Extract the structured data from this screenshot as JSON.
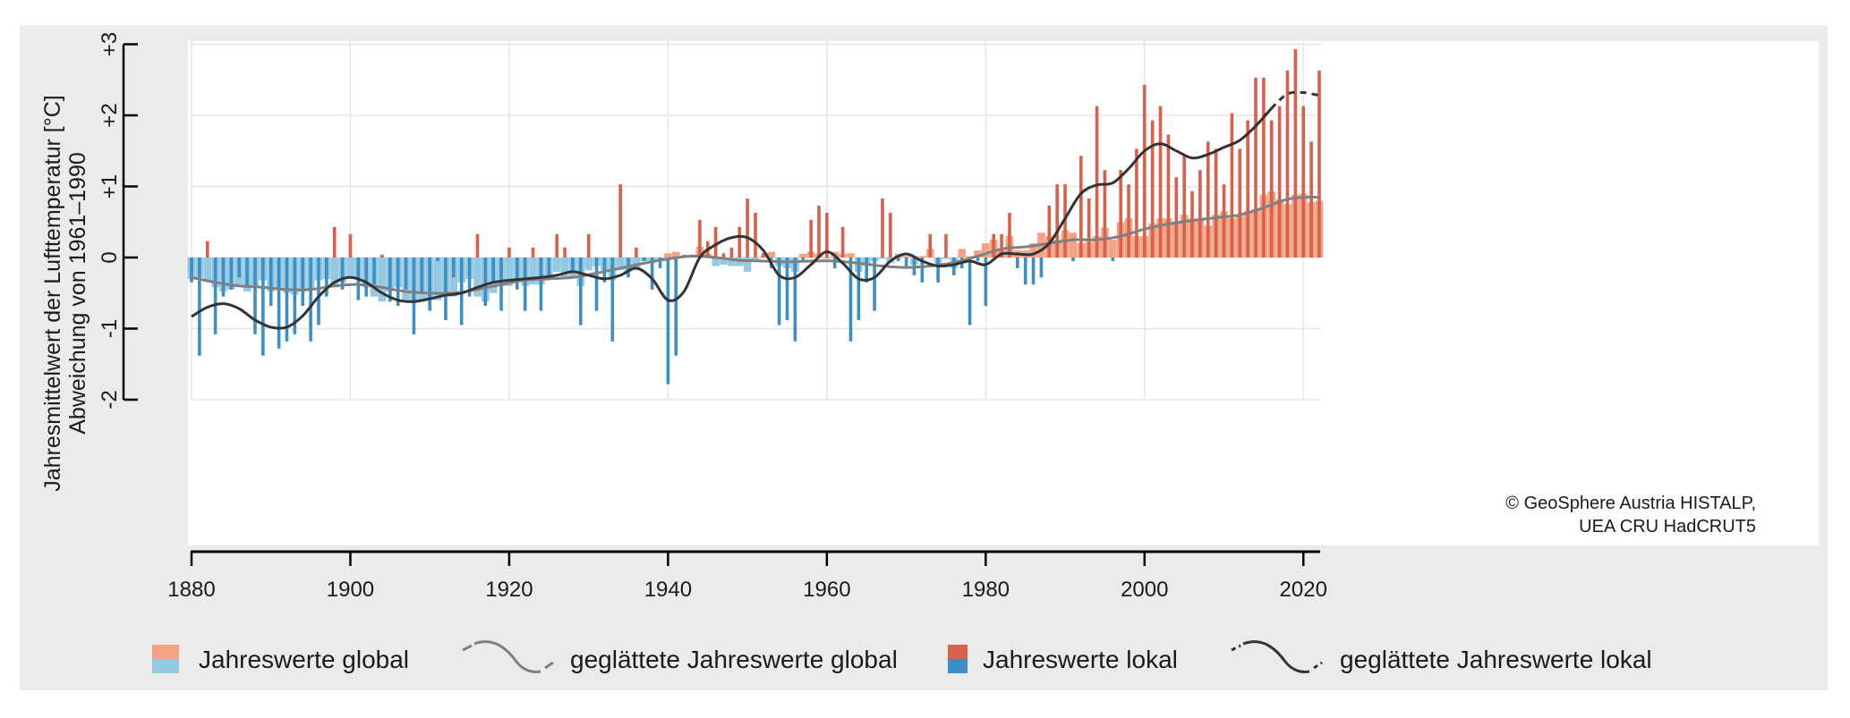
{
  "chart_data": {
    "type": "bar",
    "ylabel_line1": "Jahresmittelwert der Lufttemperatur [°C]",
    "ylabel_line2": "Abweichung von 1961–1990",
    "xlim": [
      1880,
      2022
    ],
    "ylim": [
      -2,
      3
    ],
    "x_ticks": [
      1880,
      1900,
      1920,
      1940,
      1960,
      1980,
      2000,
      2020
    ],
    "y_ticks": [
      -2,
      -1,
      0,
      1,
      2,
      3
    ],
    "y_tick_labels": [
      "-2",
      "-1",
      "0",
      "+1",
      "+2",
      "+3"
    ],
    "grid": true,
    "legend_position": "bottom",
    "credit": [
      "© GeoSphere Austria HISTALP,",
      "UEA CRU HadCRUT5"
    ],
    "colors": {
      "local_positive": "#d9604b",
      "local_negative": "#3b8fc4",
      "global_positive": "#f2a384",
      "global_negative": "#95c8e1",
      "smoothed_global": "#808080",
      "smoothed_local": "#333333"
    },
    "series": [
      {
        "name": "Jahreswerte lokal",
        "x": [
          1880,
          1881,
          1882,
          1883,
          1884,
          1885,
          1886,
          1887,
          1888,
          1889,
          1890,
          1891,
          1892,
          1893,
          1894,
          1895,
          1896,
          1897,
          1898,
          1899,
          1900,
          1901,
          1902,
          1903,
          1904,
          1905,
          1906,
          1907,
          1908,
          1909,
          1910,
          1911,
          1912,
          1913,
          1914,
          1915,
          1916,
          1917,
          1918,
          1919,
          1920,
          1921,
          1922,
          1923,
          1924,
          1925,
          1926,
          1927,
          1928,
          1929,
          1930,
          1931,
          1932,
          1933,
          1934,
          1935,
          1936,
          1937,
          1938,
          1939,
          1940,
          1941,
          1942,
          1943,
          1944,
          1945,
          1946,
          1947,
          1948,
          1949,
          1950,
          1951,
          1952,
          1953,
          1954,
          1955,
          1956,
          1957,
          1958,
          1959,
          1960,
          1961,
          1962,
          1963,
          1964,
          1965,
          1966,
          1967,
          1968,
          1969,
          1970,
          1971,
          1972,
          1973,
          1974,
          1975,
          1976,
          1977,
          1978,
          1979,
          1980,
          1981,
          1982,
          1983,
          1984,
          1985,
          1986,
          1987,
          1988,
          1989,
          1990,
          1991,
          1992,
          1993,
          1994,
          1995,
          1996,
          1997,
          1998,
          1999,
          2000,
          2001,
          2002,
          2003,
          2004,
          2005,
          2006,
          2007,
          2008,
          2009,
          2010,
          2011,
          2012,
          2013,
          2014,
          2015,
          2016,
          2017,
          2018,
          2019,
          2020,
          2021,
          2022
        ],
        "values": [
          -0.35,
          -1.38,
          0.23,
          -1.08,
          -0.55,
          -0.45,
          -0.28,
          -0.42,
          -1.08,
          -1.38,
          -0.68,
          -1.28,
          -1.18,
          -1.08,
          -0.68,
          -1.18,
          -0.95,
          -0.55,
          0.43,
          -0.45,
          0.33,
          -0.6,
          -0.55,
          -0.38,
          0.04,
          -0.62,
          -0.68,
          -0.45,
          -1.08,
          -0.48,
          -0.75,
          -0.05,
          -0.88,
          -0.28,
          -0.95,
          -0.55,
          0.33,
          -0.68,
          -0.35,
          -0.75,
          0.14,
          -0.45,
          -0.75,
          0.14,
          -0.75,
          -0.28,
          0.33,
          0.14,
          -0.22,
          -0.95,
          0.33,
          -0.75,
          -0.35,
          -1.18,
          1.03,
          -0.28,
          0.14,
          -0.05,
          -0.45,
          -0.15,
          -1.78,
          -1.38,
          0.04,
          0.04,
          0.53,
          0.23,
          0.43,
          0.06,
          0.14,
          0.43,
          0.83,
          0.63,
          0.06,
          -0.15,
          -0.95,
          -0.88,
          -1.18,
          -0.05,
          0.53,
          0.73,
          0.63,
          -0.15,
          0.43,
          -1.18,
          -0.88,
          -0.35,
          -0.75,
          0.83,
          0.63,
          -0.05,
          -0.15,
          -0.25,
          -0.35,
          0.33,
          -0.35,
          0.33,
          -0.25,
          -0.15,
          -0.95,
          -0.05,
          -0.68,
          0.33,
          0.33,
          0.63,
          -0.15,
          -0.38,
          -0.38,
          -0.28,
          0.73,
          1.03,
          1.03,
          -0.05,
          1.43,
          0.83,
          2.13,
          1.23,
          -0.05,
          1.23,
          1.03,
          1.53,
          2.43,
          1.93,
          2.13,
          1.73,
          1.13,
          1.43,
          0.93,
          1.23,
          1.63,
          1.53,
          1.03,
          2.03,
          1.53,
          1.93,
          2.53,
          2.53,
          1.93,
          2.13,
          2.63,
          2.93,
          2.13,
          1.63,
          2.63
        ]
      },
      {
        "name": "Jahreswerte global",
        "x": [
          1880,
          1881,
          1882,
          1883,
          1884,
          1885,
          1886,
          1887,
          1888,
          1889,
          1890,
          1891,
          1892,
          1893,
          1894,
          1895,
          1896,
          1897,
          1898,
          1899,
          1900,
          1901,
          1902,
          1903,
          1904,
          1905,
          1906,
          1907,
          1908,
          1909,
          1910,
          1911,
          1912,
          1913,
          1914,
          1915,
          1916,
          1917,
          1918,
          1919,
          1920,
          1921,
          1922,
          1923,
          1924,
          1925,
          1926,
          1927,
          1928,
          1929,
          1930,
          1931,
          1932,
          1933,
          1934,
          1935,
          1936,
          1937,
          1938,
          1939,
          1940,
          1941,
          1942,
          1943,
          1944,
          1945,
          1946,
          1947,
          1948,
          1949,
          1950,
          1951,
          1952,
          1953,
          1954,
          1955,
          1956,
          1957,
          1958,
          1959,
          1960,
          1961,
          1962,
          1963,
          1964,
          1965,
          1966,
          1967,
          1968,
          1969,
          1970,
          1971,
          1972,
          1973,
          1974,
          1975,
          1976,
          1977,
          1978,
          1979,
          1980,
          1981,
          1982,
          1983,
          1984,
          1985,
          1986,
          1987,
          1988,
          1989,
          1990,
          1991,
          1992,
          1993,
          1994,
          1995,
          1996,
          1997,
          1998,
          1999,
          2000,
          2001,
          2002,
          2003,
          2004,
          2005,
          2006,
          2007,
          2008,
          2009,
          2010,
          2011,
          2012,
          2013,
          2014,
          2015,
          2016,
          2017,
          2018,
          2019,
          2020,
          2021,
          2022
        ],
        "values": [
          -0.3,
          -0.28,
          -0.32,
          -0.42,
          -0.48,
          -0.45,
          -0.38,
          -0.48,
          -0.4,
          -0.32,
          -0.48,
          -0.45,
          -0.5,
          -0.52,
          -0.48,
          -0.45,
          -0.32,
          -0.3,
          -0.42,
          -0.35,
          -0.28,
          -0.3,
          -0.42,
          -0.55,
          -0.62,
          -0.48,
          -0.42,
          -0.6,
          -0.62,
          -0.62,
          -0.58,
          -0.6,
          -0.55,
          -0.55,
          -0.35,
          -0.3,
          -0.55,
          -0.62,
          -0.5,
          -0.4,
          -0.4,
          -0.3,
          -0.4,
          -0.38,
          -0.38,
          -0.3,
          -0.2,
          -0.28,
          -0.28,
          -0.4,
          -0.18,
          -0.12,
          -0.18,
          -0.32,
          -0.18,
          -0.2,
          -0.18,
          -0.05,
          -0.05,
          -0.05,
          0.06,
          0.08,
          0.02,
          0.03,
          0.15,
          0.05,
          -0.12,
          -0.1,
          -0.12,
          -0.12,
          -0.2,
          -0.05,
          0.02,
          0.08,
          -0.12,
          -0.15,
          -0.2,
          0.05,
          0.08,
          0.05,
          -0.02,
          0.08,
          0.05,
          0.06,
          -0.2,
          -0.12,
          -0.05,
          -0.02,
          -0.08,
          0.05,
          0.02,
          -0.1,
          0.02,
          0.12,
          -0.12,
          -0.02,
          -0.15,
          0.12,
          0.02,
          0.1,
          0.2,
          0.25,
          0.1,
          0.3,
          0.1,
          0.1,
          0.2,
          0.35,
          0.3,
          0.25,
          0.38,
          0.35,
          0.2,
          0.22,
          0.3,
          0.42,
          0.25,
          0.5,
          0.55,
          0.3,
          0.3,
          0.48,
          0.55,
          0.55,
          0.5,
          0.6,
          0.55,
          0.55,
          0.45,
          0.6,
          0.65,
          0.55,
          0.58,
          0.65,
          0.68,
          0.88,
          0.93,
          0.82,
          0.75,
          0.88,
          0.9,
          0.78,
          0.8
        ]
      },
      {
        "name": "geglättete Jahreswerte global",
        "x": [
          1880,
          1883,
          1886,
          1889,
          1892,
          1895,
          1898,
          1901,
          1904,
          1907,
          1910,
          1913,
          1916,
          1919,
          1922,
          1925,
          1928,
          1931,
          1934,
          1937,
          1940,
          1943,
          1946,
          1949,
          1952,
          1955,
          1958,
          1961,
          1964,
          1967,
          1970,
          1973,
          1976,
          1979,
          1982,
          1985,
          1988,
          1991,
          1994,
          1997,
          2000,
          2003,
          2006,
          2009,
          2012,
          2015,
          2018,
          2021,
          2022
        ],
        "values": [
          -0.28,
          -0.35,
          -0.4,
          -0.42,
          -0.45,
          -0.45,
          -0.4,
          -0.38,
          -0.42,
          -0.48,
          -0.5,
          -0.5,
          -0.45,
          -0.38,
          -0.32,
          -0.3,
          -0.28,
          -0.22,
          -0.15,
          -0.08,
          -0.02,
          0.02,
          0.0,
          -0.04,
          -0.05,
          -0.06,
          -0.05,
          -0.05,
          -0.08,
          -0.12,
          -0.14,
          -0.12,
          -0.07,
          0.02,
          0.12,
          0.15,
          0.2,
          0.25,
          0.25,
          0.3,
          0.4,
          0.47,
          0.52,
          0.56,
          0.6,
          0.7,
          0.82,
          0.85,
          0.84
        ]
      },
      {
        "name": "geglättete Jahreswerte lokal",
        "x": [
          1880,
          1882,
          1884,
          1886,
          1888,
          1890,
          1892,
          1894,
          1896,
          1898,
          1900,
          1902,
          1904,
          1906,
          1908,
          1910,
          1912,
          1914,
          1916,
          1918,
          1920,
          1922,
          1924,
          1926,
          1928,
          1930,
          1932,
          1934,
          1936,
          1938,
          1940,
          1942,
          1944,
          1946,
          1948,
          1950,
          1952,
          1954,
          1956,
          1958,
          1960,
          1962,
          1964,
          1966,
          1968,
          1970,
          1972,
          1974,
          1976,
          1978,
          1980,
          1982,
          1984,
          1986,
          1988,
          1990,
          1992,
          1994,
          1996,
          1998,
          2000,
          2002,
          2004,
          2006,
          2008,
          2010,
          2012,
          2014,
          2016,
          2018,
          2020,
          2022
        ],
        "values": [
          -0.83,
          -0.7,
          -0.65,
          -0.72,
          -0.88,
          -0.98,
          -0.98,
          -0.82,
          -0.55,
          -0.35,
          -0.28,
          -0.35,
          -0.5,
          -0.6,
          -0.62,
          -0.58,
          -0.53,
          -0.5,
          -0.42,
          -0.35,
          -0.32,
          -0.3,
          -0.28,
          -0.25,
          -0.2,
          -0.25,
          -0.3,
          -0.25,
          -0.15,
          -0.3,
          -0.6,
          -0.48,
          0.0,
          0.18,
          0.28,
          0.28,
          0.1,
          -0.25,
          -0.28,
          -0.1,
          0.08,
          -0.08,
          -0.3,
          -0.28,
          -0.05,
          0.05,
          -0.05,
          -0.12,
          -0.1,
          -0.05,
          -0.1,
          0.05,
          0.05,
          0.05,
          0.2,
          0.55,
          0.9,
          1.02,
          1.05,
          1.25,
          1.5,
          1.6,
          1.5,
          1.4,
          1.45,
          1.55,
          1.65,
          1.85,
          2.1,
          2.3,
          2.32,
          2.28
        ]
      }
    ]
  }
}
